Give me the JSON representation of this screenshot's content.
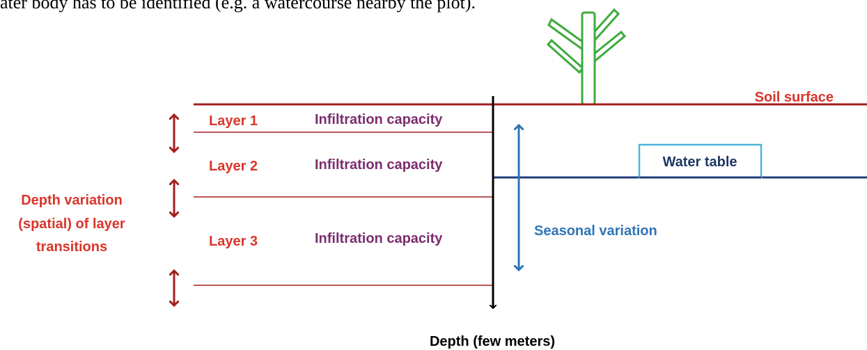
{
  "caption": "ater body has to be identified (e.g. a watercourse nearby the plot).",
  "surface": {
    "label": "Soil surface"
  },
  "layers": [
    {
      "label": "Layer 1",
      "property": "Infiltration capacity"
    },
    {
      "label": "Layer 2",
      "property": "Infiltration capacity"
    },
    {
      "label": "Layer 3",
      "property": "Infiltration capacity"
    }
  ],
  "depth_variation": [
    "Depth variation",
    "(spatial) of layer",
    "transitions"
  ],
  "water_table": {
    "label": "Water table"
  },
  "seasonal": {
    "label": "Seasonal variation"
  },
  "axis": {
    "label": "Depth (few meters)"
  }
}
